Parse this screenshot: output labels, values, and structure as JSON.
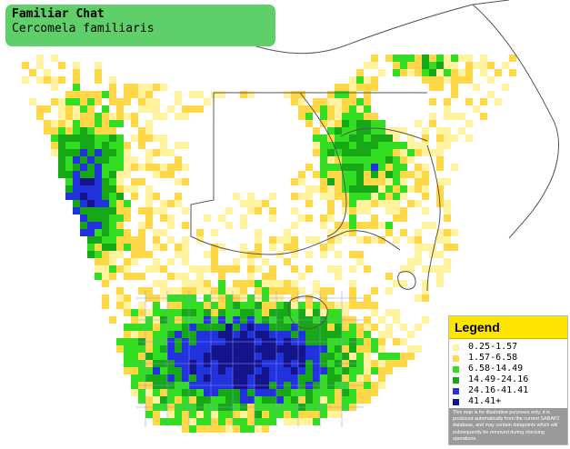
{
  "title": {
    "common_name": "Familiar Chat",
    "scientific_name": "Cercomela familiaris"
  },
  "legend": {
    "heading": "Legend",
    "classes": [
      {
        "label": "0.25-1.57",
        "color": "#fff3a0"
      },
      {
        "label": "1.57-6.58",
        "color": "#ffd84a"
      },
      {
        "label": "6.58-14.49",
        "color": "#33dd22"
      },
      {
        "label": "14.49-24.16",
        "color": "#16a816"
      },
      {
        "label": "24.16-41.41",
        "color": "#2233dd"
      },
      {
        "label": "41.41+",
        "color": "#14148c"
      }
    ],
    "note": "This map is for illustrative purposes only; it is produced automatically from the current SABAP2 database, and may contain datapoints which will subsequently be removed during checking operations."
  },
  "map": {
    "background_color": "#ffffff",
    "border_color": "#555555"
  }
}
